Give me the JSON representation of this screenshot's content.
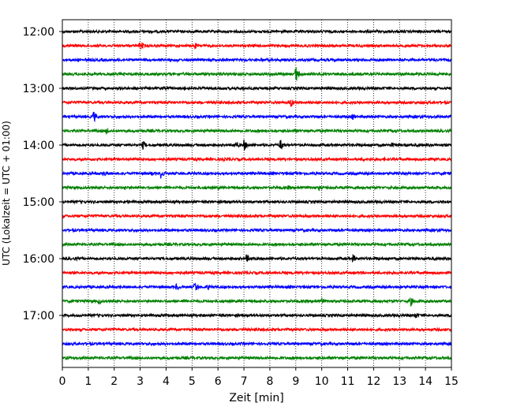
{
  "chart_data": {
    "type": "line",
    "title": "",
    "xlabel": "Zeit  [min]",
    "ylabel": "UTC (Lokalzeit = UTC + 01:00)",
    "xlim": [
      0,
      15
    ],
    "x_ticks": [
      "0",
      "1",
      "2",
      "3",
      "4",
      "5",
      "6",
      "7",
      "8",
      "9",
      "10",
      "11",
      "12",
      "13",
      "14",
      "15"
    ],
    "y_tick_labels": [
      "12:00",
      "13:00",
      "14:00",
      "15:00",
      "16:00",
      "17:00"
    ],
    "grid": "vertical dotted",
    "colors": [
      "#000000",
      "#ff0000",
      "#0000ff",
      "#008000"
    ],
    "traces": [
      {
        "time": "12:00",
        "color": "#000000",
        "events": []
      },
      {
        "time": "12:15",
        "color": "#ff0000",
        "events": [
          [
            3.0,
            7
          ],
          [
            5.1,
            5
          ]
        ]
      },
      {
        "time": "12:30",
        "color": "#0000ff",
        "events": [
          [
            4.4,
            3
          ]
        ]
      },
      {
        "time": "12:45",
        "color": "#008000",
        "events": [
          [
            9.0,
            11
          ],
          [
            3.0,
            3
          ]
        ]
      },
      {
        "time": "13:00",
        "color": "#000000",
        "events": [
          [
            3.9,
            3
          ],
          [
            4.7,
            3
          ]
        ]
      },
      {
        "time": "13:15",
        "color": "#ff0000",
        "events": [
          [
            8.8,
            7
          ]
        ]
      },
      {
        "time": "13:30",
        "color": "#0000ff",
        "events": [
          [
            1.2,
            8
          ],
          [
            11.2,
            5
          ]
        ]
      },
      {
        "time": "13:45",
        "color": "#008000",
        "events": [
          [
            1.7,
            5
          ],
          [
            9.0,
            3
          ]
        ]
      },
      {
        "time": "14:00",
        "color": "#000000",
        "events": [
          [
            3.1,
            6
          ],
          [
            7.0,
            8
          ],
          [
            6.7,
            5
          ],
          [
            8.4,
            8
          ],
          [
            12.7,
            4
          ],
          [
            13.2,
            3
          ]
        ]
      },
      {
        "time": "14:15",
        "color": "#ff0000",
        "events": [
          [
            6.2,
            3
          ],
          [
            11.6,
            3
          ],
          [
            12.4,
            3
          ]
        ]
      },
      {
        "time": "14:30",
        "color": "#0000ff",
        "events": [
          [
            1.6,
            5
          ],
          [
            3.8,
            7
          ],
          [
            3.4,
            4
          ]
        ]
      },
      {
        "time": "14:45",
        "color": "#008000",
        "events": [
          [
            2.4,
            4
          ],
          [
            6.0,
            3
          ],
          [
            9.9,
            4
          ],
          [
            8.7,
            3
          ]
        ]
      },
      {
        "time": "15:00",
        "color": "#000000",
        "events": [
          [
            2.5,
            3
          ],
          [
            14.0,
            3
          ]
        ]
      },
      {
        "time": "15:15",
        "color": "#ff0000",
        "events": [
          [
            4.6,
            2
          ],
          [
            13.2,
            2
          ]
        ]
      },
      {
        "time": "15:30",
        "color": "#0000ff",
        "events": []
      },
      {
        "time": "15:45",
        "color": "#008000",
        "events": []
      },
      {
        "time": "16:00",
        "color": "#000000",
        "events": [
          [
            7.1,
            6
          ],
          [
            11.2,
            6
          ],
          [
            0.5,
            3
          ]
        ]
      },
      {
        "time": "16:15",
        "color": "#ff0000",
        "events": []
      },
      {
        "time": "16:30",
        "color": "#0000ff",
        "events": [
          [
            4.4,
            6
          ],
          [
            5.1,
            8
          ],
          [
            5.6,
            5
          ],
          [
            14.0,
            3
          ],
          [
            13.0,
            3
          ]
        ]
      },
      {
        "time": "16:45",
        "color": "#008000",
        "events": [
          [
            1.4,
            5
          ],
          [
            10.0,
            4
          ],
          [
            13.4,
            8
          ]
        ]
      },
      {
        "time": "17:00",
        "color": "#000000",
        "events": [
          [
            13.6,
            5
          ]
        ]
      },
      {
        "time": "17:15",
        "color": "#ff0000",
        "events": [
          [
            6.8,
            3
          ]
        ]
      },
      {
        "time": "17:30",
        "color": "#0000ff",
        "events": []
      },
      {
        "time": "17:45",
        "color": "#008000",
        "events": [
          [
            14.2,
            3
          ]
        ]
      }
    ]
  }
}
